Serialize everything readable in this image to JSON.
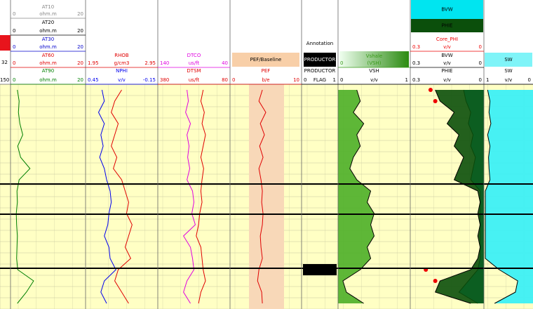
{
  "header": {
    "left_values": [
      "32",
      "150"
    ],
    "annotation_title": "Annotation",
    "boxes": [
      {
        "label": "BVW",
        "color": "#00e5f0"
      },
      {
        "label": "PHIE",
        "color": "#0b4f0b"
      },
      {
        "label": "PEF/Baseline",
        "color": "#f8cfa8"
      },
      {
        "label": "PRODUCTOR",
        "color": "#000000"
      },
      {
        "label": "SW",
        "color": "#7ff4f8"
      }
    ]
  },
  "curves": [
    {
      "name": "AT10",
      "color": "#888888",
      "left": 0,
      "unit": "ohm.m",
      "right": 20
    },
    {
      "name": "AT20",
      "color": "#000000",
      "left": 0,
      "unit": "ohm.m",
      "right": 20
    },
    {
      "name": "AT30",
      "color": "#0000cc",
      "left": 0,
      "unit": "ohm.m",
      "right": 20
    },
    {
      "name": "AT60",
      "color": "#e00000",
      "left": 0,
      "unit": "ohm.m",
      "right": 20
    },
    {
      "name": "AT90",
      "color": "#008000",
      "left": 0,
      "unit": "ohm.m",
      "right": 20,
      "values": [
        1.5,
        2,
        1.8,
        2.2,
        3,
        1.6,
        2.4,
        5,
        2,
        1.4,
        1.5,
        1.2,
        1.3,
        1.5,
        1.4,
        1.3,
        1.6,
        6,
        4,
        1.5
      ]
    },
    {
      "name": "RHOB",
      "color": "#e00000",
      "left": 1.95,
      "unit": "g/cm3",
      "right": 2.95,
      "values": [
        2.45,
        2.35,
        2.3,
        2.4,
        2.35,
        2.3,
        2.38,
        2.33,
        2.45,
        2.5,
        2.55,
        2.52,
        2.6,
        2.55,
        2.5,
        2.58,
        2.4,
        2.35,
        2.45,
        2.55
      ]
    },
    {
      "name": "NPHI",
      "color": "#0000ee",
      "left": 0.45,
      "unit": "v/v",
      "right": -0.15,
      "values": [
        0.32,
        0.3,
        0.35,
        0.3,
        0.33,
        0.31,
        0.34,
        0.3,
        0.28,
        0.25,
        0.24,
        0.26,
        0.27,
        0.3,
        0.26,
        0.25,
        0.2,
        0.3,
        0.33,
        0.28
      ]
    },
    {
      "name": "DTCO",
      "color": "#e000e0",
      "left": 140,
      "unit": "us/ft",
      "right": 40,
      "values": [
        100,
        98,
        102,
        95,
        100,
        97,
        99,
        96,
        100,
        92,
        90,
        93,
        88,
        105,
        95,
        92,
        90,
        100,
        105,
        95
      ]
    },
    {
      "name": "DTSM",
      "color": "#e00000",
      "left": 380,
      "unit": "us/ft",
      "right": 80,
      "values": [
        190,
        200,
        185,
        195,
        180,
        190,
        200,
        188,
        195,
        200,
        195,
        205,
        210,
        220,
        200,
        195,
        190,
        180,
        200,
        210
      ]
    },
    {
      "name": "PEF",
      "color": "#e00000",
      "left": 0,
      "unit": "b/e",
      "right": 10,
      "values": [
        4.5,
        4,
        5,
        4.2,
        4.8,
        4.1,
        4.6,
        4,
        4.3,
        4.5,
        4.4,
        4.6,
        4.5,
        4.2,
        4.3,
        4.5,
        4,
        3.8,
        4.4,
        4.5
      ]
    },
    {
      "name": "PRODUCTOR",
      "color": "#000000",
      "left": 0,
      "unit": "FLAG",
      "right": 1,
      "values": [
        0,
        0,
        0,
        0,
        0,
        0,
        0,
        0,
        0,
        0,
        0,
        0,
        0,
        0,
        0,
        0,
        1,
        0,
        0,
        0
      ]
    },
    {
      "name": "Vshale",
      "color": "#3a9a1a",
      "left": 0,
      "unit": "(VSH)",
      "right": 1
    },
    {
      "name": "VSH",
      "color": "#000000",
      "left": 0,
      "unit": "v/v",
      "right": 1,
      "values": [
        0.25,
        0.3,
        0.2,
        0.35,
        0.25,
        0.3,
        0.2,
        0.15,
        0.25,
        0.45,
        0.4,
        0.5,
        0.45,
        0.5,
        0.4,
        0.45,
        0.3,
        0.05,
        0.1,
        0.35
      ]
    },
    {
      "name": "Core_PHI",
      "color": "#ee0000",
      "left": 0.3,
      "unit": "v/v",
      "right": 0,
      "values": [
        0.22,
        0.2,
        null,
        null,
        null,
        null,
        null,
        null,
        null,
        null,
        null,
        null,
        null,
        null,
        null,
        null,
        0.24,
        0.2,
        null,
        null
      ]
    },
    {
      "name": "BVW",
      "color": "#000000",
      "left": 0.3,
      "unit": "v/v",
      "right": 0,
      "values": [
        0.08,
        0.07,
        0.05,
        0.06,
        0.04,
        0.05,
        0.03,
        0.04,
        0.05,
        0.01,
        0.01,
        0.01,
        0.01,
        0.01,
        0.01,
        0.01,
        0.02,
        0.06,
        0.1,
        0.02
      ]
    },
    {
      "name": "PHIE",
      "color": "#000000",
      "left": 0.3,
      "unit": "v/v",
      "right": 0,
      "values": [
        0.2,
        0.18,
        0.12,
        0.15,
        0.1,
        0.12,
        0.08,
        0.1,
        0.12,
        0.02,
        0.01,
        0.02,
        0.01,
        0.02,
        0.01,
        0.02,
        0.05,
        0.18,
        0.2,
        0.05
      ]
    },
    {
      "name": "SW",
      "color": "#000000",
      "left": 1,
      "unit": "v/v",
      "right": 0,
      "values": [
        0.95,
        0.9,
        0.92,
        0.88,
        0.95,
        0.9,
        0.93,
        0.92,
        0.9,
        1,
        1,
        1,
        1,
        1,
        1,
        1,
        0.7,
        0.3,
        0.35,
        0.8
      ]
    }
  ]
}
